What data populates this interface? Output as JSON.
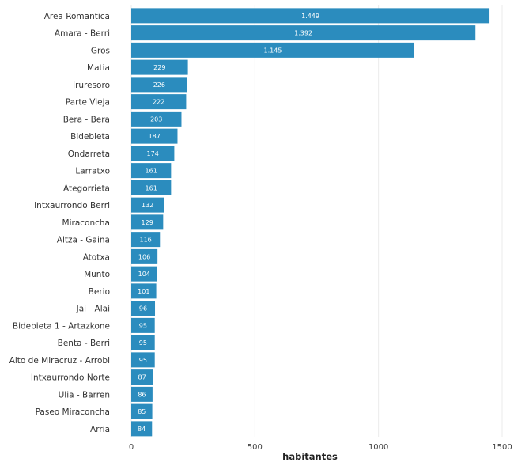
{
  "chart_data": {
    "type": "bar",
    "orientation": "horizontal",
    "categories": [
      "Area Romantica",
      "Amara - Berri",
      "Gros",
      "Matia",
      "Iruresoro",
      "Parte Vieja",
      "Bera - Bera",
      "Bidebieta",
      "Ondarreta",
      "Larratxo",
      "Ategorrieta",
      "Intxaurrondo Berri",
      "Miraconcha",
      "Altza - Gaina",
      "Atotxa",
      "Munto",
      "Berio",
      "Jai - Alai",
      "Bidebieta 1 - Artazkone",
      "Benta - Berri",
      "Alto de Miracruz - Arrobi",
      "Intxaurrondo Norte",
      "Ulia - Barren",
      "Paseo Miraconcha",
      "Arria"
    ],
    "values": [
      1449,
      1392,
      1145,
      229,
      226,
      222,
      203,
      187,
      174,
      161,
      161,
      132,
      129,
      116,
      106,
      104,
      101,
      96,
      95,
      95,
      95,
      87,
      86,
      85,
      84
    ],
    "value_labels": [
      "1.449",
      "1.392",
      "1.145",
      "229",
      "226",
      "222",
      "203",
      "187",
      "174",
      "161",
      "161",
      "132",
      "129",
      "116",
      "106",
      "104",
      "101",
      "96",
      "95",
      "95",
      "95",
      "87",
      "86",
      "85",
      "84"
    ],
    "xlabel": "habitantes",
    "ylabel": "",
    "xlim": [
      0,
      1500
    ],
    "xticks": [
      0,
      500,
      1000,
      1500
    ],
    "xtick_labels": [
      "0",
      "500",
      "1000",
      "1500"
    ],
    "grid": "vertical",
    "legend": "none",
    "bar_color": "#2b8cbe",
    "grid_color": "#ebebeb"
  }
}
